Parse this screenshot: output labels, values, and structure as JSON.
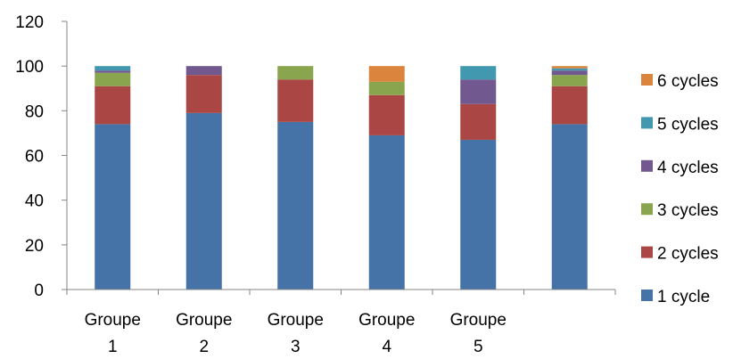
{
  "chart_data": {
    "type": "bar",
    "stacked": true,
    "categories": [
      [
        "Groupe",
        "1"
      ],
      [
        "Groupe",
        "2"
      ],
      [
        "Groupe",
        "3"
      ],
      [
        "Groupe",
        "4"
      ],
      [
        "Groupe",
        "5"
      ],
      [
        ""
      ]
    ],
    "series": [
      {
        "name": "1 cycle",
        "color": "#4572A7",
        "values": [
          74,
          79,
          75,
          69,
          67,
          74
        ]
      },
      {
        "name": "2 cycles",
        "color": "#AA4643",
        "values": [
          17,
          17,
          19,
          18,
          16,
          17
        ]
      },
      {
        "name": "3 cycles",
        "color": "#89A54E",
        "values": [
          6,
          0,
          6,
          6,
          0,
          5
        ]
      },
      {
        "name": "4 cycles",
        "color": "#71588F",
        "values": [
          1,
          4,
          0,
          0,
          11,
          2
        ]
      },
      {
        "name": "5 cycles",
        "color": "#4198AF",
        "values": [
          2,
          0,
          0,
          0,
          6,
          1
        ]
      },
      {
        "name": "6 cycles",
        "color": "#DB843D",
        "values": [
          0,
          0,
          0,
          7,
          0,
          1
        ]
      }
    ],
    "ylim": [
      0,
      120
    ],
    "yticks": [
      "0",
      "20",
      "40",
      "60",
      "80",
      "100",
      "120"
    ],
    "grid": false,
    "legend_position": "right",
    "title": "",
    "xlabel": "",
    "ylabel": ""
  }
}
